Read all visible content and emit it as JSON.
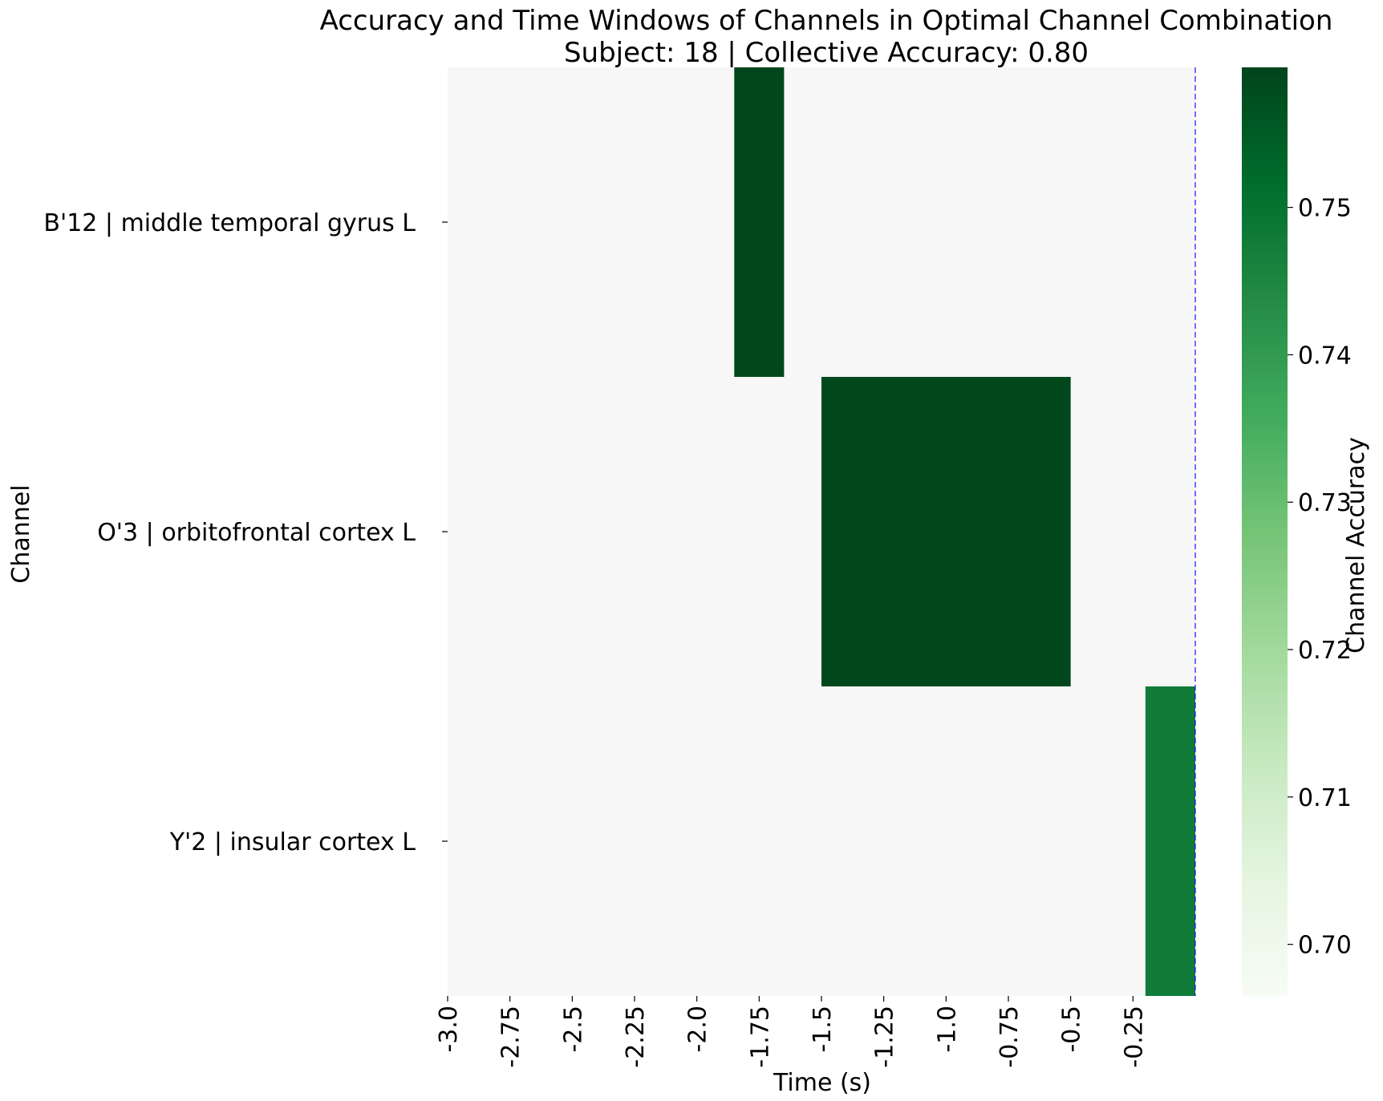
{
  "chart_data": {
    "type": "heatmap",
    "title": "Accuracy and Time Windows of Channels in Optimal Channel Combination",
    "subtitle": "Subject: 18 | Collective Accuracy: 0.80",
    "xlabel": "Time (s)",
    "ylabel": "Channel",
    "xlim": [
      -3.0,
      0.0
    ],
    "x_ticks": [
      -3.0,
      -2.75,
      -2.5,
      -2.25,
      -2.0,
      -1.75,
      -1.5,
      -1.25,
      -1.0,
      -0.75,
      -0.5,
      -0.25
    ],
    "x_tick_labels": [
      "-3.0",
      "-2.75",
      "-2.5",
      "-2.25",
      "-2.0",
      "-1.75",
      "-1.5",
      "-1.25",
      "-1.0",
      "-0.75",
      "-0.5",
      "-0.25"
    ],
    "channels": [
      "B'12 | middle temporal gyrus L",
      "O'3 | orbitofrontal cortex L",
      "Y'2 | insular cortex L"
    ],
    "background_value": 0.697,
    "windows": [
      {
        "channel": "B'12 | middle temporal gyrus L",
        "start": -1.85,
        "end": -1.65,
        "accuracy": 0.759
      },
      {
        "channel": "O'3 | orbitofrontal cortex L",
        "start": -1.5,
        "end": -0.5,
        "accuracy": 0.759
      },
      {
        "channel": "Y'2 | insular cortex L",
        "start": -0.2,
        "end": 0.0,
        "accuracy": 0.748
      }
    ],
    "reference_line": {
      "x": 0.0,
      "color": "#0000ff",
      "style": "dashed"
    },
    "colorbar": {
      "label": "Channel Accuracy",
      "colormap": "Greens",
      "range": [
        0.6965,
        0.7595
      ],
      "ticks": [
        0.7,
        0.71,
        0.72,
        0.73,
        0.74,
        0.75
      ],
      "tick_labels": [
        "0.70",
        "0.71",
        "0.72",
        "0.73",
        "0.74",
        "0.75"
      ]
    },
    "grid": false,
    "colors": {
      "low": "#f7f7f7",
      "high": "#00441b"
    }
  }
}
